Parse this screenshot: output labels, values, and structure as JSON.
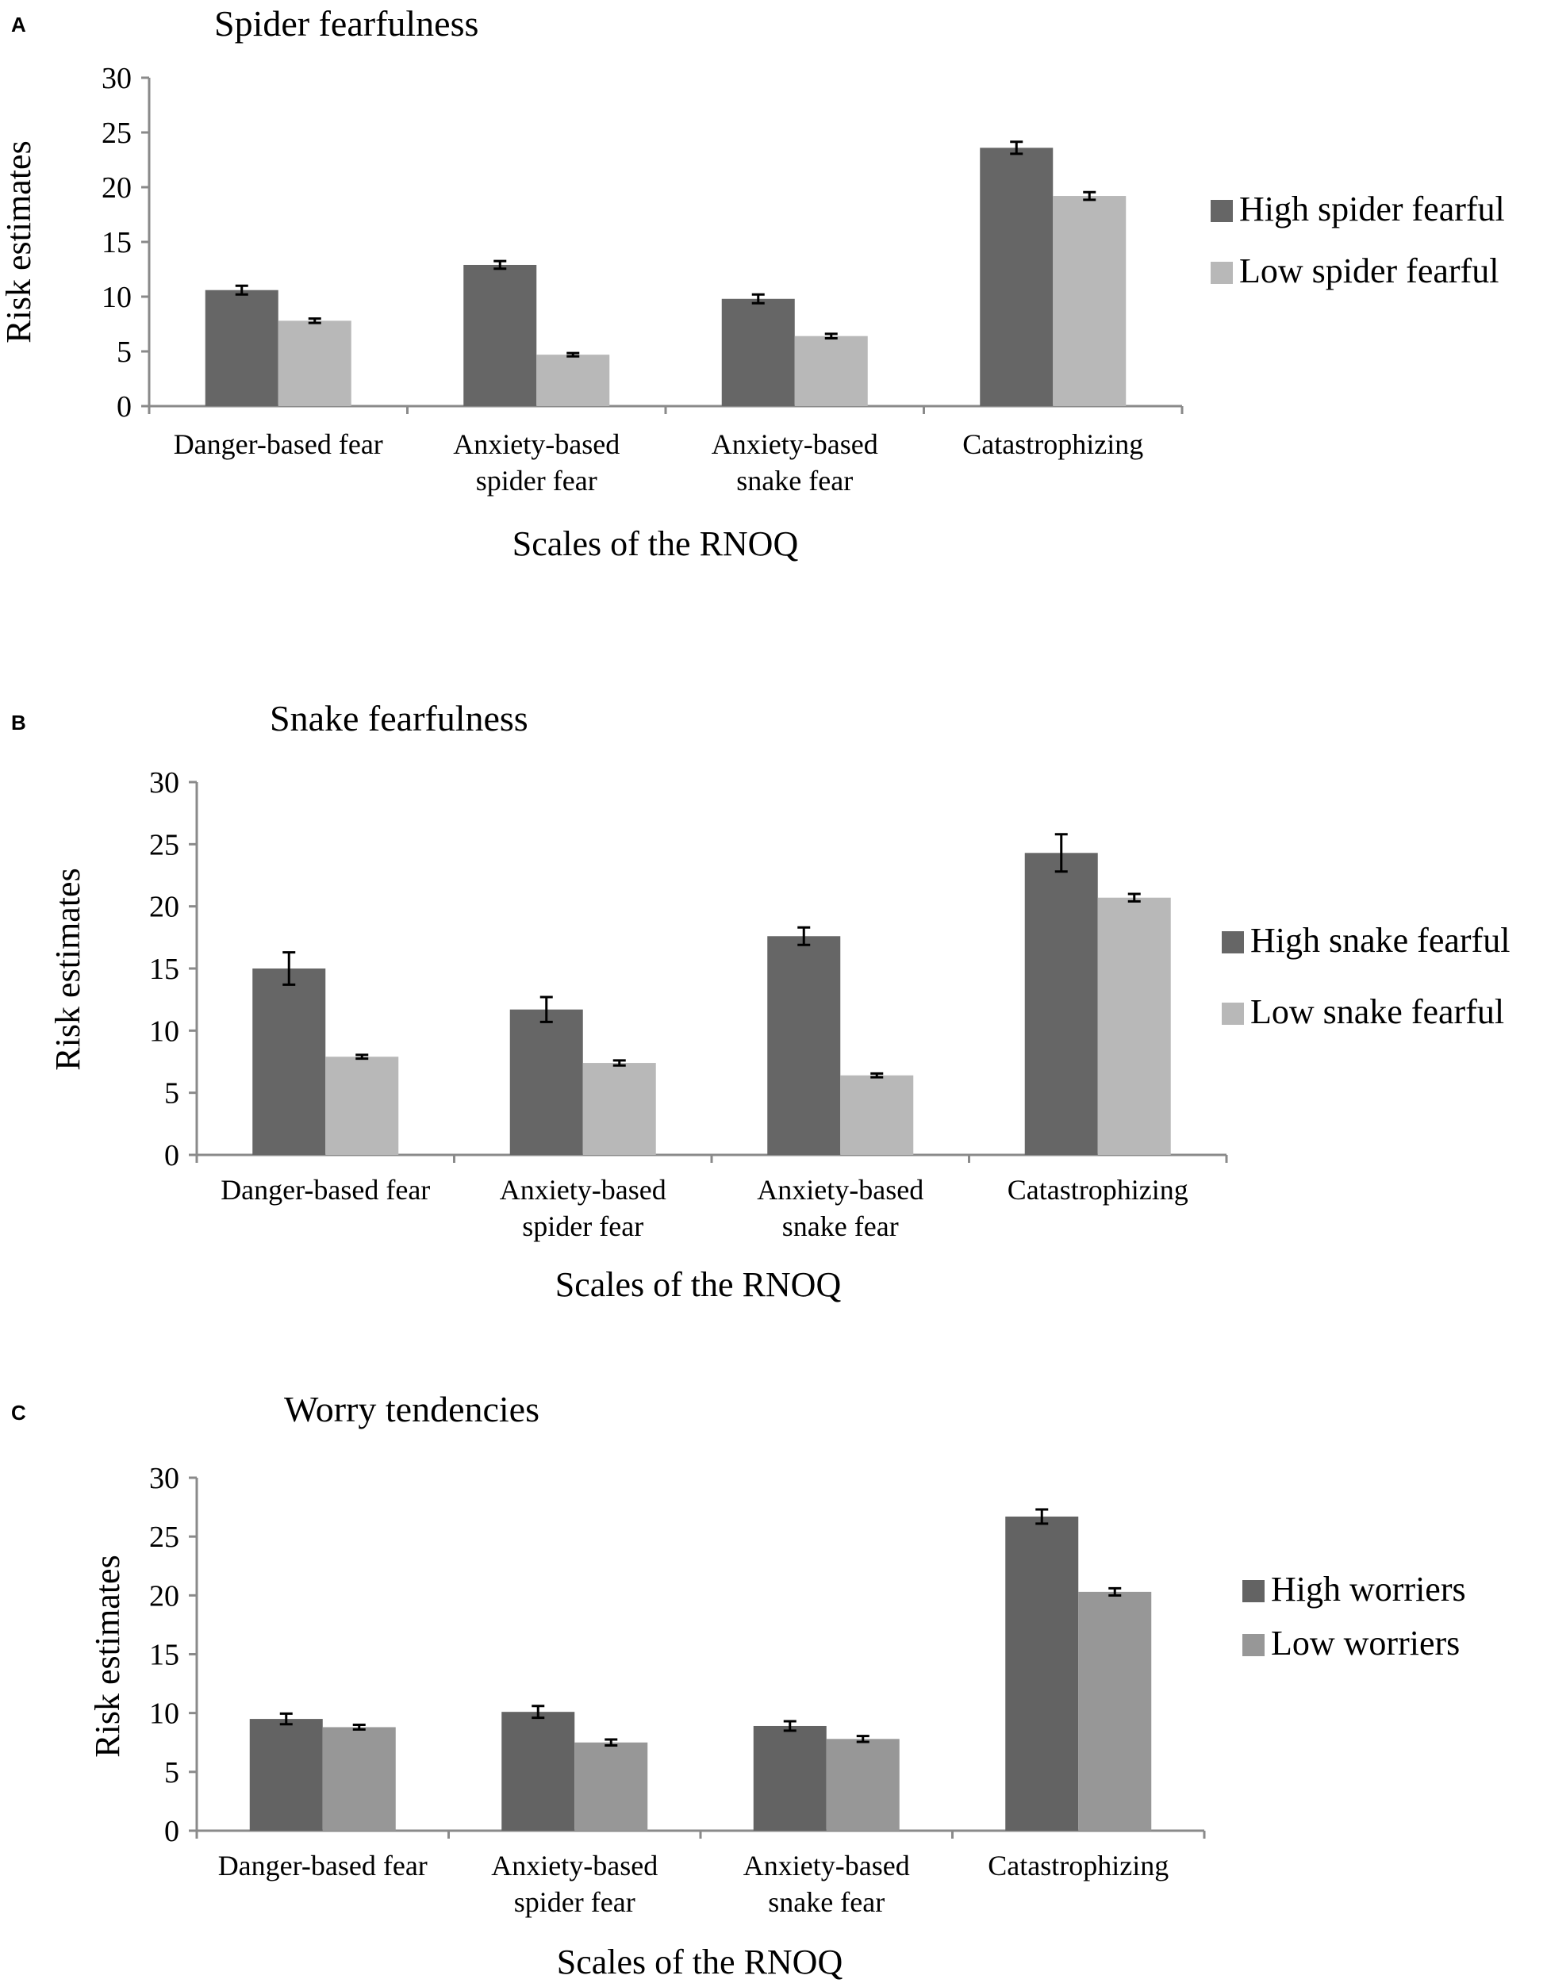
{
  "chart_data": [
    {
      "panel_label": "A",
      "type": "bar",
      "title": "Spider fearfulness",
      "xlabel": "Scales of the RNOQ",
      "ylabel": "Risk estimates",
      "ylim": [
        0,
        30
      ],
      "yticks": [
        0,
        5,
        10,
        15,
        20,
        25,
        30
      ],
      "categories": [
        [
          "Danger-based fear"
        ],
        [
          "Anxiety-based",
          "spider fear"
        ],
        [
          "Anxiety-based",
          "snake fear"
        ],
        [
          "Catastrophizing"
        ]
      ],
      "series": [
        {
          "name": "High spider fearful",
          "color": "#666666",
          "values": [
            10.6,
            12.9,
            9.8,
            23.6
          ],
          "errors": [
            0.4,
            0.35,
            0.4,
            0.55
          ]
        },
        {
          "name": "Low spider fearful",
          "color": "#b8b8b8",
          "values": [
            7.8,
            4.7,
            6.4,
            19.2
          ],
          "errors": [
            0.2,
            0.15,
            0.2,
            0.35
          ]
        }
      ],
      "legend": "right"
    },
    {
      "panel_label": "B",
      "type": "bar",
      "title": "Snake fearfulness",
      "xlabel": "Scales of the RNOQ",
      "ylabel": "Risk estimates",
      "ylim": [
        0,
        30
      ],
      "yticks": [
        0,
        5,
        10,
        15,
        20,
        25,
        30
      ],
      "categories": [
        [
          "Danger-based fear"
        ],
        [
          "Anxiety-based",
          "spider fear"
        ],
        [
          "Anxiety-based",
          "snake fear"
        ],
        [
          "Catastrophizing"
        ]
      ],
      "series": [
        {
          "name": "High snake fearful",
          "color": "#666666",
          "values": [
            15.0,
            11.7,
            17.6,
            24.3
          ],
          "errors": [
            1.3,
            1.0,
            0.7,
            1.5
          ]
        },
        {
          "name": "Low snake fearful",
          "color": "#b8b8b8",
          "values": [
            7.9,
            7.4,
            6.4,
            20.7
          ],
          "errors": [
            0.15,
            0.2,
            0.15,
            0.3
          ]
        }
      ],
      "legend": "right"
    },
    {
      "panel_label": "C",
      "type": "bar",
      "title": "Worry tendencies",
      "xlabel": "Scales of the RNOQ",
      "ylabel": "Risk estimates",
      "ylim": [
        0,
        30
      ],
      "yticks": [
        0,
        5,
        10,
        15,
        20,
        25,
        30
      ],
      "categories": [
        [
          "Danger-based fear"
        ],
        [
          "Anxiety-based",
          "spider fear"
        ],
        [
          "Anxiety-based",
          "snake fear"
        ],
        [
          "Catastrophizing"
        ]
      ],
      "series": [
        {
          "name": "High worriers",
          "color": "#636363",
          "values": [
            9.5,
            10.1,
            8.9,
            26.7
          ],
          "errors": [
            0.45,
            0.5,
            0.4,
            0.6
          ]
        },
        {
          "name": "Low worriers",
          "color": "#979797",
          "values": [
            8.8,
            7.5,
            7.8,
            20.3
          ],
          "errors": [
            0.2,
            0.25,
            0.25,
            0.3
          ]
        }
      ],
      "legend": "right"
    }
  ]
}
